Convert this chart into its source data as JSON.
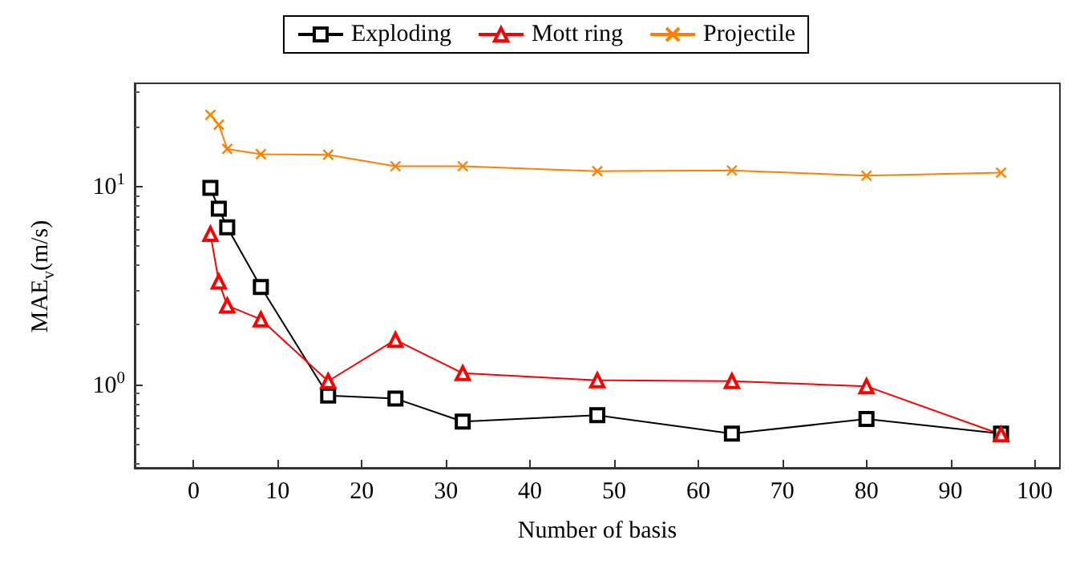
{
  "chart_data": {
    "type": "line",
    "xlabel": "Number of basis",
    "ylabel": "MAE$_{v}$(m/s)",
    "x": [
      2,
      3,
      4,
      8,
      16,
      24,
      32,
      48,
      64,
      80,
      96
    ],
    "series": [
      {
        "name": "Exploding",
        "color": "#000000",
        "marker": "square",
        "values": [
          9.8,
          7.7,
          6.2,
          3.1,
          0.88,
          0.85,
          0.65,
          0.7,
          0.565,
          0.67,
          0.565
        ]
      },
      {
        "name": "Mott ring",
        "color": "#ff0000",
        "marker": "triangle",
        "values": [
          5.75,
          3.3,
          2.5,
          2.13,
          1.04,
          1.68,
          1.14,
          1.05,
          1.04,
          0.98,
          0.56
        ]
      },
      {
        "name": "Projectile",
        "color": "#ff8000",
        "marker": "cross",
        "values": [
          22.9,
          20.4,
          15.4,
          14.5,
          14.4,
          12.6,
          12.6,
          11.9,
          12.0,
          11.3,
          11.7
        ]
      }
    ],
    "log": "y",
    "xlim": [
      -7,
      103
    ],
    "ylim": [
      0.38,
      33
    ],
    "xticks": [
      0,
      10,
      20,
      30,
      40,
      50,
      60,
      70,
      80,
      90,
      100
    ],
    "yticks": [
      {
        "value": 1,
        "label": "10$^{0}$"
      },
      {
        "value": 10,
        "label": "10$^{1}$"
      }
    ],
    "grid": false,
    "legend": "top",
    "line_style": "solid"
  }
}
